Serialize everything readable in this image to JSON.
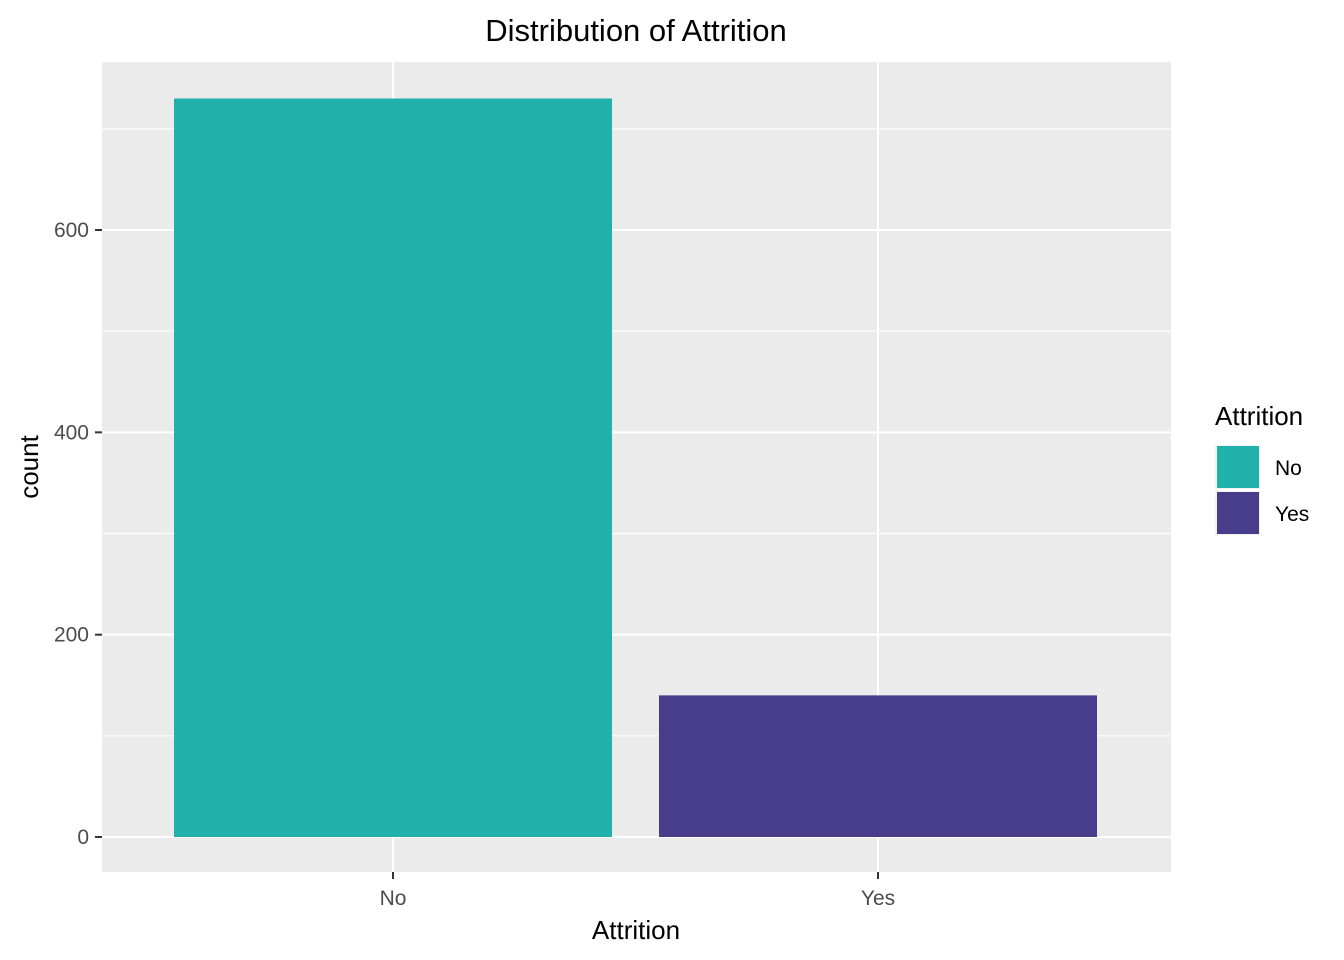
{
  "chart_data": {
    "type": "bar",
    "title": "Distribution of Attrition",
    "xlabel": "Attrition",
    "ylabel": "count",
    "categories": [
      "No",
      "Yes"
    ],
    "values": [
      730,
      140
    ],
    "colors": [
      "#20B2AA",
      "#483D8B"
    ],
    "ylim": [
      0,
      760
    ],
    "y_ticks": [
      0,
      200,
      400,
      600
    ],
    "y_tick_labels": [
      "0",
      "200",
      "400",
      "600"
    ],
    "grid": true,
    "panel_background": "#EBEBEB",
    "grid_color": "#FFFFFF",
    "legend": {
      "title": "Attrition",
      "position": "right",
      "items": [
        "No",
        "Yes"
      ]
    }
  }
}
